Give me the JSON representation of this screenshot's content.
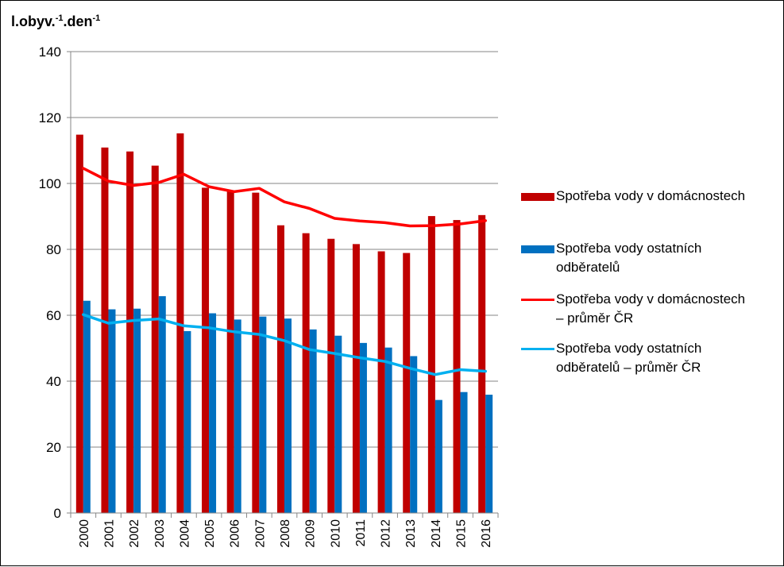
{
  "chart_data": {
    "type": "bar",
    "title": "",
    "ylabel": "l.obyv.",
    "ylabel_sup1": "-1",
    "ylabel_mid": ".den",
    "ylabel_sup2": "-1",
    "xlabel": "",
    "ylim": [
      0,
      140
    ],
    "yticks": [
      "0",
      "20",
      "40",
      "60",
      "80",
      "100",
      "120",
      "140"
    ],
    "categories": [
      "2000",
      "2001",
      "2002",
      "2003",
      "2004",
      "2005",
      "2006",
      "2007",
      "2008",
      "2009",
      "2010",
      "2011",
      "2012",
      "2013",
      "2014",
      "2015",
      "2016"
    ],
    "series": [
      {
        "name": "Spotřeba vody v domácnostech",
        "kind": "bar",
        "color": "#C00000",
        "values": [
          114.8,
          110.9,
          109.7,
          105.4,
          115.2,
          98.7,
          97.9,
          97.2,
          87.3,
          84.9,
          83.2,
          81.6,
          79.4,
          78.9,
          90.1,
          88.9,
          90.4
        ]
      },
      {
        "name": "Spotřeba vody ostatních odběratelů",
        "kind": "bar",
        "color": "#0070C0",
        "values": [
          64.4,
          61.8,
          62.0,
          65.8,
          55.2,
          60.6,
          58.7,
          59.6,
          59.0,
          55.7,
          53.8,
          51.6,
          50.2,
          47.6,
          34.3,
          36.7,
          35.9
        ]
      },
      {
        "name": "Spotřeba vody v domácnostech – průměr ČR",
        "kind": "line",
        "color": "#FF0000",
        "values": [
          104.6,
          100.7,
          99.4,
          100.3,
          102.8,
          99.0,
          97.5,
          98.5,
          94.4,
          92.4,
          89.4,
          88.6,
          88.1,
          87.1,
          87.2,
          87.7,
          88.7
        ]
      },
      {
        "name": "Spotřeba vody ostatních odběratelů – průměr ČR",
        "kind": "line",
        "color": "#00B0F0",
        "values": [
          60.2,
          57.6,
          58.4,
          58.9,
          56.8,
          56.2,
          55.0,
          54.2,
          52.3,
          49.6,
          48.4,
          47.1,
          46.0,
          43.9,
          42.0,
          43.5,
          43.0
        ]
      }
    ],
    "legend": {
      "position": "right",
      "items": [
        {
          "label_line1": "Spotřeba vody v domácnostech",
          "label_line2": "",
          "swatch": "bar",
          "color": "#C00000"
        },
        {
          "label_line1": "Spotřeba vody ostatních",
          "label_line2": "odběratelů",
          "swatch": "bar",
          "color": "#0070C0"
        },
        {
          "label_line1": "Spotřeba vody v domácnostech",
          "label_line2": "– průměr ČR",
          "swatch": "line",
          "color": "#FF0000"
        },
        {
          "label_line1": "Spotřeba vody ostatních",
          "label_line2": "odběratelů – průměr ČR",
          "swatch": "line",
          "color": "#00B0F0"
        }
      ]
    },
    "grid": true,
    "gridline_color": "#868686",
    "axis_color": "#868686"
  }
}
